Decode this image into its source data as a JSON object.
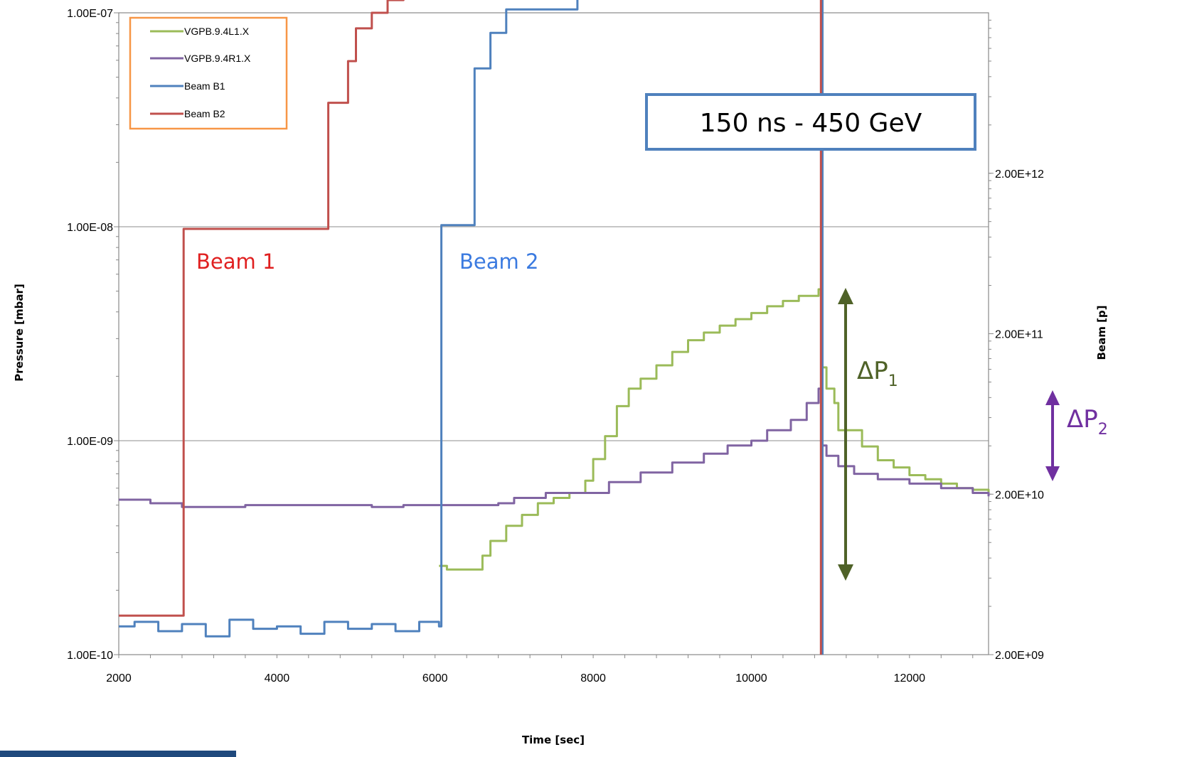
{
  "chart_data": {
    "type": "line",
    "xlabel": "Time [sec]",
    "ylabel": "Pressure [mbar]",
    "y2label": "Beam [p]",
    "xlim": [
      2000,
      13000
    ],
    "x_ticks": [
      2000,
      4000,
      6000,
      8000,
      10000,
      12000
    ],
    "x_tick_labels": [
      "2000",
      "4000",
      "6000",
      "8000",
      "10000",
      "12000"
    ],
    "ylim": [
      1e-10,
      1e-07
    ],
    "yscale": "log",
    "y_ticks": [
      1e-10,
      1e-09,
      1e-08,
      1e-07
    ],
    "y_tick_labels": [
      "1.00E-10",
      "1.00E-09",
      "1.00E-08",
      "1.00E-07"
    ],
    "y2lim": [
      2000000000.0,
      20000000000000.0
    ],
    "y2scale": "log",
    "y2_ticks": [
      2000000000.0,
      20000000000.0,
      200000000000.0,
      2000000000000.0
    ],
    "y2_tick_labels": [
      "2.00E+09",
      "2.00E+10",
      "2.00E+11",
      "2.00E+12"
    ],
    "grid": "horizontal major",
    "legend_position": "top-left",
    "series": [
      {
        "name": "VGPB.9.4L1.X",
        "axis": "left",
        "color": "#9BBB59",
        "points": [
          [
            6050,
            2.6e-10
          ],
          [
            6150,
            2.5e-10
          ],
          [
            6500,
            2.5e-10
          ],
          [
            6600,
            2.9e-10
          ],
          [
            6700,
            3.4e-10
          ],
          [
            6900,
            4e-10
          ],
          [
            7100,
            4.5e-10
          ],
          [
            7300,
            5.1e-10
          ],
          [
            7500,
            5.4e-10
          ],
          [
            7700,
            5.7e-10
          ],
          [
            7900,
            6.5e-10
          ],
          [
            8000,
            8.2e-10
          ],
          [
            8150,
            1.05e-09
          ],
          [
            8300,
            1.45e-09
          ],
          [
            8450,
            1.75e-09
          ],
          [
            8600,
            1.95e-09
          ],
          [
            8800,
            2.25e-09
          ],
          [
            9000,
            2.6e-09
          ],
          [
            9200,
            2.95e-09
          ],
          [
            9400,
            3.2e-09
          ],
          [
            9600,
            3.45e-09
          ],
          [
            9800,
            3.7e-09
          ],
          [
            10000,
            3.95e-09
          ],
          [
            10200,
            4.25e-09
          ],
          [
            10400,
            4.5e-09
          ],
          [
            10600,
            4.75e-09
          ],
          [
            10850,
            5.1e-09
          ],
          [
            10900,
            2.2e-09
          ],
          [
            10950,
            1.75e-09
          ],
          [
            11050,
            1.5e-09
          ],
          [
            11100,
            1.12e-09
          ],
          [
            11300,
            1.12e-09
          ],
          [
            11400,
            9.4e-10
          ],
          [
            11600,
            8.1e-10
          ],
          [
            11800,
            7.5e-10
          ],
          [
            12000,
            6.9e-10
          ],
          [
            12200,
            6.6e-10
          ],
          [
            12400,
            6.3e-10
          ],
          [
            12600,
            6e-10
          ],
          [
            12800,
            5.9e-10
          ],
          [
            13000,
            5.6e-10
          ]
        ]
      },
      {
        "name": "VGPB.9.4R1.X",
        "axis": "left",
        "color": "#8064A2",
        "points": [
          [
            2000,
            5.3e-10
          ],
          [
            2400,
            5.1e-10
          ],
          [
            2800,
            4.9e-10
          ],
          [
            3200,
            4.9e-10
          ],
          [
            3600,
            5e-10
          ],
          [
            4000,
            5e-10
          ],
          [
            4400,
            5e-10
          ],
          [
            4800,
            5e-10
          ],
          [
            5200,
            4.9e-10
          ],
          [
            5600,
            5e-10
          ],
          [
            6000,
            5e-10
          ],
          [
            6400,
            5e-10
          ],
          [
            6800,
            5.1e-10
          ],
          [
            7000,
            5.4e-10
          ],
          [
            7400,
            5.7e-10
          ],
          [
            7800,
            5.7e-10
          ],
          [
            8200,
            6.4e-10
          ],
          [
            8600,
            7.1e-10
          ],
          [
            9000,
            7.9e-10
          ],
          [
            9400,
            8.7e-10
          ],
          [
            9700,
            9.5e-10
          ],
          [
            10000,
            1e-09
          ],
          [
            10200,
            1.12e-09
          ],
          [
            10500,
            1.25e-09
          ],
          [
            10700,
            1.5e-09
          ],
          [
            10850,
            1.75e-09
          ],
          [
            10900,
            9.5e-10
          ],
          [
            10950,
            8.5e-10
          ],
          [
            11100,
            7.6e-10
          ],
          [
            11300,
            7e-10
          ],
          [
            11600,
            6.6e-10
          ],
          [
            12000,
            6.3e-10
          ],
          [
            12400,
            6e-10
          ],
          [
            12800,
            5.7e-10
          ],
          [
            13000,
            5.5e-10
          ]
        ]
      },
      {
        "name": "Beam B1",
        "axis": "right",
        "color": "#4F81BD",
        "points": [
          [
            2000,
            3000000000.0
          ],
          [
            2200,
            3200000000.0
          ],
          [
            2500,
            2800000000.0
          ],
          [
            2800,
            3100000000.0
          ],
          [
            3100,
            2600000000.0
          ],
          [
            3400,
            3300000000.0
          ],
          [
            3700,
            2900000000.0
          ],
          [
            4000,
            3000000000.0
          ],
          [
            4300,
            2700000000.0
          ],
          [
            4600,
            3200000000.0
          ],
          [
            4900,
            2900000000.0
          ],
          [
            5200,
            3100000000.0
          ],
          [
            5500,
            2800000000.0
          ],
          [
            5800,
            3200000000.0
          ],
          [
            6050,
            3000000000.0
          ],
          [
            6080,
            950000000000.0
          ],
          [
            6450,
            950000000000.0
          ],
          [
            6500,
            9000000000000.0
          ],
          [
            6700,
            15000000000000.0
          ],
          [
            6900,
            21000000000000.0
          ],
          [
            7600,
            21000000000000.0
          ],
          [
            7800,
            25000000000000.0
          ],
          [
            8100,
            27000000000000.0
          ],
          [
            8200,
            29000000000000.0
          ],
          [
            10850,
            29000000000000.0
          ],
          [
            10900,
            2000000000.0
          ]
        ]
      },
      {
        "name": "Beam B2",
        "axis": "right",
        "color": "#C0504D",
        "points": [
          [
            2000,
            3500000000.0
          ],
          [
            2800,
            3500000000.0
          ],
          [
            2820,
            900000000000.0
          ],
          [
            4600,
            900000000000.0
          ],
          [
            4650,
            5500000000000.0
          ],
          [
            4900,
            10000000000000.0
          ],
          [
            5000,
            16000000000000.0
          ],
          [
            5200,
            20000000000000.0
          ],
          [
            5400,
            24000000000000.0
          ],
          [
            5600,
            28000000000000.0
          ],
          [
            10850,
            28000000000000.0
          ],
          [
            10880,
            2000000000.0
          ]
        ]
      }
    ],
    "legend": [
      "VGPB.9.4L1.X",
      "VGPB.9.4R1.X",
      "Beam B1",
      "Beam B2"
    ],
    "annotations": [
      {
        "text": "Beam 1",
        "color": "#E02020"
      },
      {
        "text": "Beam 2",
        "color": "#3A7AE0"
      },
      {
        "text": "150 ns - 450 GeV",
        "boxed": true
      },
      {
        "text": "ΔP",
        "subscript": "1",
        "color": "#4F6228"
      },
      {
        "text": "ΔP",
        "subscript": "2",
        "color": "#7030A0"
      }
    ]
  }
}
